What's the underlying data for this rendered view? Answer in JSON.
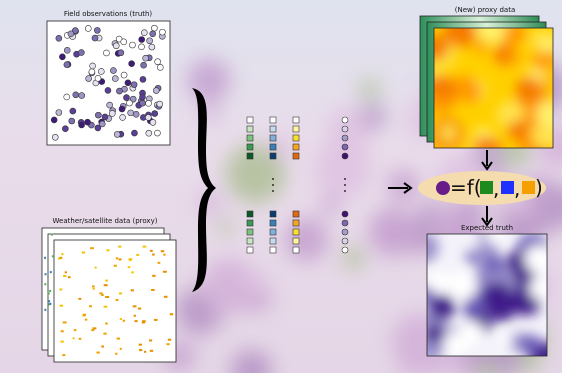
{
  "panels": {
    "field": {
      "title": "Field observations (truth)"
    },
    "proxy": {
      "title": "Weather/satellite data (proxy)"
    },
    "new_proxy": {
      "title": "(New) proxy data"
    },
    "expected": {
      "title": "Expected truth"
    }
  },
  "formula": {
    "open": "=f(",
    "sep": ",",
    "close": ")"
  }
}
